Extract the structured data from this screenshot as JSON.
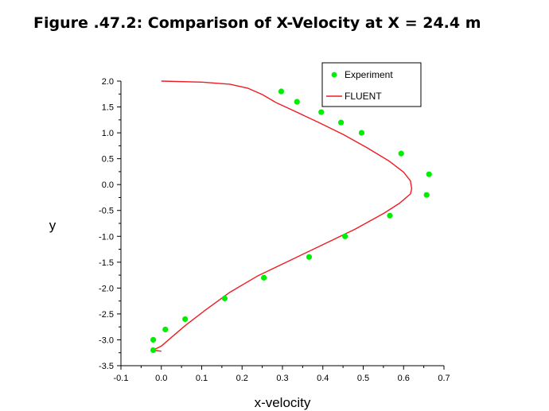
{
  "title": "Figure .47.2: Comparison of X-Velocity at X = 24.4 m",
  "chart_data": {
    "type": "scatter",
    "title": "Figure .47.2: Comparison of X-Velocity at X = 24.4 m",
    "xlabel": "x-velocity",
    "ylabel": "y",
    "xlim": [
      -0.1,
      0.7
    ],
    "ylim": [
      -3.5,
      2.0
    ],
    "x_ticks": [
      "-0.1",
      "0.0",
      "0.1",
      "0.2",
      "0.3",
      "0.4",
      "0.5",
      "0.6",
      "0.7"
    ],
    "y_ticks": [
      "2.0",
      "1.5",
      "1.0",
      "0.5",
      "0.0",
      "-0.5",
      "-1.0",
      "-1.5",
      "-2.0",
      "-2.5",
      "-3.0",
      "-3.5"
    ],
    "legend_position": "top-right",
    "grid": false,
    "series": [
      {
        "name": "Experiment",
        "kind": "points",
        "color": "#00ee00",
        "points": [
          [
            0.297,
            1.8
          ],
          [
            0.336,
            1.6
          ],
          [
            0.396,
            1.4
          ],
          [
            0.445,
            1.2
          ],
          [
            0.496,
            1.0
          ],
          [
            0.594,
            0.6
          ],
          [
            0.663,
            0.2
          ],
          [
            0.657,
            -0.2
          ],
          [
            0.566,
            -0.6
          ],
          [
            0.455,
            -1.0
          ],
          [
            0.366,
            -1.4
          ],
          [
            0.254,
            -1.8
          ],
          [
            0.157,
            -2.2
          ],
          [
            0.059,
            -2.6
          ],
          [
            0.01,
            -2.8
          ],
          [
            -0.02,
            -3.0
          ],
          [
            -0.02,
            -3.2
          ]
        ]
      },
      {
        "name": "FLUENT",
        "kind": "line",
        "color": "#ee1c24",
        "points": [
          [
            0.0,
            2.0
          ],
          [
            0.1,
            1.98
          ],
          [
            0.17,
            1.94
          ],
          [
            0.215,
            1.86
          ],
          [
            0.25,
            1.74
          ],
          [
            0.285,
            1.58
          ],
          [
            0.33,
            1.42
          ],
          [
            0.39,
            1.2
          ],
          [
            0.45,
            0.97
          ],
          [
            0.51,
            0.71
          ],
          [
            0.565,
            0.45
          ],
          [
            0.6,
            0.24
          ],
          [
            0.617,
            0.07
          ],
          [
            0.62,
            -0.08
          ],
          [
            0.617,
            -0.18
          ],
          [
            0.59,
            -0.36
          ],
          [
            0.55,
            -0.56
          ],
          [
            0.48,
            -0.86
          ],
          [
            0.4,
            -1.16
          ],
          [
            0.32,
            -1.46
          ],
          [
            0.24,
            -1.76
          ],
          [
            0.17,
            -2.08
          ],
          [
            0.11,
            -2.42
          ],
          [
            0.06,
            -2.72
          ],
          [
            0.03,
            -2.92
          ],
          [
            0.0,
            -3.12
          ],
          [
            -0.02,
            -3.2
          ],
          [
            0.0,
            -3.22
          ]
        ]
      }
    ]
  }
}
